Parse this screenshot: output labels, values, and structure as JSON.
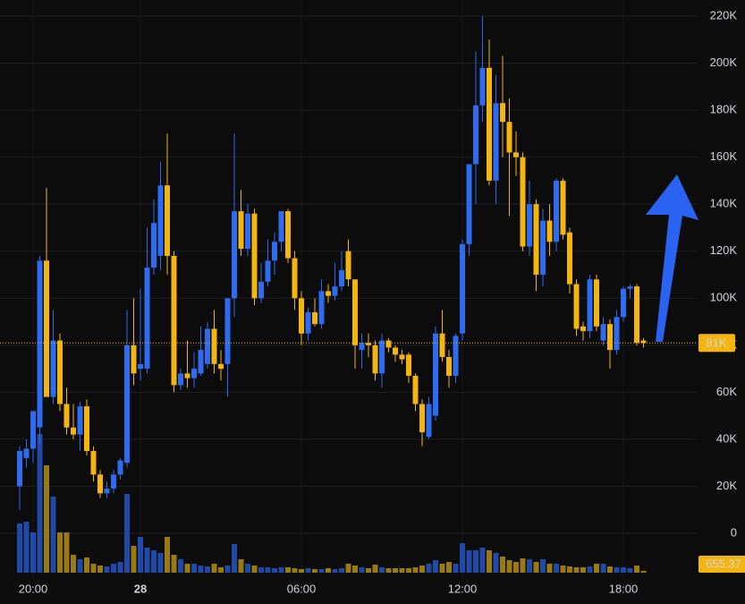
{
  "chart_data": {
    "type": "candlestick",
    "x": [
      "19:30",
      "19:45",
      "20:00",
      "20:15",
      "20:30",
      "20:45",
      "21:00",
      "21:15",
      "21:30",
      "21:45",
      "22:00",
      "22:15",
      "22:30",
      "22:45",
      "23:00",
      "23:15",
      "23:30",
      "23:45",
      "00:00",
      "00:15",
      "00:30",
      "00:45",
      "01:00",
      "01:15",
      "01:30",
      "01:45",
      "02:00",
      "02:15",
      "02:30",
      "02:45",
      "03:00",
      "03:15",
      "03:30",
      "03:45",
      "04:00",
      "04:15",
      "04:30",
      "04:45",
      "05:00",
      "05:15",
      "05:30",
      "05:45",
      "06:00",
      "06:15",
      "06:30",
      "06:45",
      "07:00",
      "07:15",
      "07:30",
      "07:45",
      "08:00",
      "08:15",
      "08:30",
      "08:45",
      "09:00",
      "09:15",
      "09:30",
      "09:45",
      "10:00",
      "10:15",
      "10:30",
      "10:45",
      "11:00",
      "11:15",
      "11:30",
      "11:45",
      "12:00",
      "12:15",
      "12:30",
      "12:45",
      "13:00",
      "13:15",
      "13:30",
      "13:45",
      "14:00",
      "14:15",
      "14:30",
      "14:45",
      "15:00",
      "15:15",
      "15:30",
      "15:45",
      "16:00",
      "16:15",
      "16:30",
      "16:45",
      "17:00",
      "17:15",
      "17:30",
      "17:45",
      "18:00",
      "18:15",
      "18:30",
      "18:45"
    ],
    "open": [
      20,
      32,
      36,
      45,
      116,
      58,
      82,
      55,
      45,
      42,
      54,
      35,
      25,
      17,
      19,
      25,
      30,
      80,
      70,
      70,
      113,
      118,
      148,
      118,
      63,
      68,
      66,
      68,
      72,
      87,
      72,
      72,
      100,
      137,
      121,
      136,
      100,
      107,
      116,
      124,
      137,
      117,
      100,
      85,
      94,
      89,
      103,
      101,
      105,
      120,
      108,
      78,
      81,
      80,
      68,
      82,
      79,
      76,
      76,
      67,
      55,
      41,
      50,
      85,
      75,
      67,
      85,
      123,
      157,
      182,
      198,
      150,
      183,
      175,
      162,
      160,
      122,
      140,
      110,
      133,
      124,
      150,
      128,
      106,
      88,
      86,
      108,
      82,
      89,
      78,
      92,
      104,
      105,
      82
    ],
    "high": [
      37,
      40,
      52,
      118,
      147,
      95,
      85,
      62,
      55,
      56,
      57,
      37,
      27,
      22,
      27,
      32,
      95,
      100,
      104,
      130,
      142,
      158,
      170,
      120,
      70,
      82,
      77,
      88,
      90,
      95,
      78,
      100,
      170,
      146,
      140,
      138,
      115,
      125,
      128,
      137,
      138,
      120,
      103,
      96,
      100,
      108,
      106,
      115,
      120,
      125,
      108,
      85,
      85,
      82,
      85,
      83,
      80,
      78,
      77,
      68,
      57,
      58,
      88,
      95,
      78,
      85,
      125,
      157,
      205,
      220,
      210,
      195,
      203,
      185,
      171,
      162,
      150,
      142,
      138,
      140,
      151,
      151,
      130,
      108,
      90,
      110,
      110,
      92,
      91,
      95,
      105,
      106,
      106,
      83
    ],
    "low": [
      10,
      28,
      30,
      38,
      60,
      55,
      52,
      42,
      40,
      35,
      33,
      22,
      15,
      15,
      17,
      23,
      28,
      63,
      65,
      68,
      110,
      112,
      110,
      60,
      61,
      62,
      62,
      67,
      70,
      68,
      65,
      58,
      92,
      118,
      118,
      97,
      98,
      105,
      110,
      120,
      115,
      95,
      80,
      82,
      88,
      87,
      98,
      99,
      103,
      105,
      70,
      70,
      75,
      65,
      62,
      77,
      73,
      72,
      64,
      52,
      37,
      40,
      48,
      73,
      62,
      64,
      82,
      118,
      140,
      175,
      148,
      140,
      160,
      135,
      152,
      120,
      118,
      103,
      105,
      118,
      120,
      125,
      102,
      84,
      82,
      83,
      86,
      80,
      70,
      76,
      90,
      100,
      80,
      79
    ],
    "close": [
      35,
      36,
      52,
      116,
      58,
      82,
      55,
      45,
      42,
      54,
      35,
      25,
      17,
      19,
      25,
      31,
      80,
      68,
      72,
      113,
      132,
      148,
      118,
      63,
      68,
      66,
      70,
      78,
      87,
      72,
      70,
      100,
      137,
      121,
      136,
      100,
      107,
      116,
      124,
      137,
      117,
      100,
      85,
      94,
      89,
      103,
      101,
      105,
      112,
      108,
      80,
      81,
      80,
      68,
      82,
      79,
      76,
      74,
      67,
      55,
      43,
      55,
      85,
      75,
      67,
      84,
      123,
      157,
      182,
      198,
      150,
      183,
      175,
      162,
      160,
      122,
      140,
      110,
      133,
      124,
      150,
      127,
      106,
      87,
      86,
      108,
      88,
      89,
      78,
      92,
      104,
      105,
      81,
      81
    ],
    "volume": [
      17190,
      17810,
      14060,
      48440,
      37500,
      26560,
      14060,
      14060,
      6250,
      4690,
      5310,
      3130,
      2500,
      2190,
      3130,
      3750,
      27500,
      9380,
      12500,
      8750,
      7810,
      6880,
      12500,
      6250,
      4690,
      3130,
      3130,
      2500,
      2190,
      3130,
      1880,
      2500,
      10000,
      4690,
      3130,
      2500,
      1880,
      1880,
      1560,
      1880,
      1880,
      1560,
      1250,
      1560,
      1250,
      1250,
      1560,
      1250,
      1560,
      3130,
      2500,
      1880,
      1560,
      2810,
      1880,
      1560,
      1560,
      1560,
      1560,
      1880,
      2500,
      3130,
      4380,
      3130,
      3750,
      3130,
      10310,
      7810,
      7810,
      8750,
      7810,
      6880,
      5630,
      4380,
      3750,
      5000,
      4690,
      3750,
      4690,
      3130,
      3130,
      2500,
      2190,
      1880,
      1880,
      2190,
      3130,
      3130,
      2190,
      1880,
      1880,
      1560,
      2500,
      655.37
    ],
    "volume_ylim": [
      0,
      50000
    ],
    "up_color": "#2d6bf0",
    "down_color": "#f5b50f",
    "up_volume_color": "#1f4aa8",
    "down_volume_color": "#9a7a12",
    "ylim": [
      0,
      220
    ],
    "yticks": [
      0,
      {
        "value": 20,
        "label": "20K"
      },
      {
        "value": 40,
        "label": "40K"
      },
      {
        "value": 60,
        "label": "60K"
      },
      {
        "value": 80,
        "label": "80K"
      },
      {
        "value": 100,
        "label": "100K"
      },
      {
        "value": 120,
        "label": "120K"
      },
      {
        "value": 140,
        "label": "140K"
      },
      {
        "value": 160,
        "label": "160K"
      },
      {
        "value": 180,
        "label": "180K"
      },
      {
        "value": 200,
        "label": "200K"
      },
      {
        "value": 220,
        "label": "220K"
      }
    ],
    "xticks": [
      "20:00",
      {
        "value": "00:00",
        "label": "28"
      },
      "06:00",
      "12:00",
      "18:00"
    ],
    "last_price": {
      "value": 81,
      "label": "81K"
    },
    "grid": true
  }
}
